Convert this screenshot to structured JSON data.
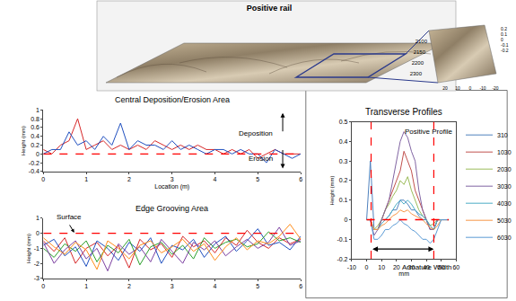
{
  "image_panel": {
    "title": "Positive rail",
    "x_ticks": [
      2100,
      2150,
      2200,
      2300
    ],
    "y_ticks": [
      20,
      10,
      0,
      -10,
      -20
    ],
    "z_ticks": [
      0.2,
      0.1,
      0,
      -0.1,
      -0.2
    ]
  },
  "chart_data": [
    {
      "type": "line",
      "title": "Central Deposition/Erosion Area",
      "x_label": "Location (m)",
      "y_label": "Height (mm)",
      "x": [
        0,
        0.2,
        0.4,
        0.6,
        0.8,
        1,
        1.2,
        1.4,
        1.6,
        1.8,
        2,
        2.2,
        2.4,
        2.6,
        2.8,
        3,
        3.2,
        3.4,
        3.6,
        3.8,
        4,
        4.2,
        4.4,
        4.6,
        4.8,
        5,
        5.2,
        5.4,
        5.6,
        5.8,
        6
      ],
      "series": [
        {
          "color": "#d62728",
          "values": [
            0.1,
            0.0,
            0.2,
            0.3,
            0.8,
            0.1,
            0.2,
            0.3,
            0.1,
            0.2,
            0.1,
            0.2,
            0.1,
            0.3,
            0.2,
            0.1,
            0.2,
            0.1,
            0.2,
            0.1,
            0.1,
            0.0,
            0.1,
            0.0,
            0.1,
            -0.1,
            0.0,
            0.1,
            0.0,
            0.0,
            0.0
          ]
        },
        {
          "color": "#1f4fbf",
          "values": [
            0.0,
            0.1,
            0.1,
            0.5,
            0.2,
            0.3,
            0.1,
            0.4,
            0.2,
            0.7,
            0.1,
            0.3,
            0.2,
            0.2,
            0.1,
            0.3,
            0.1,
            0.2,
            0.1,
            0.0,
            0.1,
            0.1,
            0.0,
            0.1,
            0.0,
            0.0,
            -0.2,
            0.1,
            0.0,
            -0.1,
            0.0
          ]
        },
        {
          "color": "#ff0000",
          "line_style": "dashed",
          "values": [
            0,
            0,
            0,
            0,
            0,
            0,
            0,
            0,
            0,
            0,
            0,
            0,
            0,
            0,
            0,
            0,
            0,
            0,
            0,
            0,
            0,
            0,
            0,
            0,
            0,
            0,
            0,
            0,
            0,
            0,
            0
          ]
        }
      ],
      "xlim": [
        0,
        6
      ],
      "xticks": [
        0,
        1,
        2,
        3,
        4,
        5,
        6
      ],
      "ylim": [
        -0.4,
        1
      ],
      "yticks": [
        -0.4,
        -0.2,
        0,
        0.2,
        0.4,
        0.6,
        0.8,
        1
      ],
      "grid": false,
      "annotations": [
        {
          "text": "Deposition"
        },
        {
          "text": "Erosion"
        }
      ]
    },
    {
      "type": "line",
      "title": "Edge Grooving Area",
      "y_label": "Height (mm)",
      "x": [
        0,
        0.25,
        0.5,
        0.75,
        1,
        1.25,
        1.5,
        1.75,
        2,
        2.25,
        2.5,
        2.75,
        3,
        3.25,
        3.5,
        3.75,
        4,
        4.25,
        4.5,
        4.75,
        5,
        5.25,
        5.5,
        5.75,
        6
      ],
      "series": [
        {
          "color": "#d62728",
          "values": [
            -0.5,
            -1.2,
            -0.3,
            -2.0,
            -1.0,
            -0.6,
            -1.5,
            -0.8,
            -2.3,
            -0.4,
            -1.1,
            -0.7,
            -1.6,
            -0.2,
            -0.9,
            -0.5,
            -1.3,
            -0.3,
            -0.8,
            0.2,
            -0.6,
            -1.0,
            -0.3,
            -0.7,
            -0.4
          ]
        },
        {
          "color": "#1f4fbf",
          "values": [
            -0.8,
            -0.4,
            -1.5,
            -0.9,
            -2.2,
            -0.5,
            -1.0,
            -1.8,
            -0.6,
            -1.2,
            -0.3,
            -2.0,
            -0.8,
            -1.1,
            -0.4,
            -1.6,
            -0.7,
            -0.2,
            -1.2,
            -0.5,
            0.3,
            -0.8,
            -0.6,
            -1.1,
            -0.2
          ]
        },
        {
          "color": "#2ca02c",
          "values": [
            -1.0,
            -1.6,
            -0.7,
            -1.2,
            -0.5,
            -1.9,
            -0.8,
            -1.3,
            -0.4,
            -2.1,
            -0.9,
            -0.6,
            -1.4,
            -0.8,
            -1.7,
            -0.3,
            -1.0,
            -0.6,
            -0.4,
            -0.9,
            -0.7,
            0.1,
            -0.5,
            -0.3,
            -0.6
          ]
        },
        {
          "color": "#7b3fa0",
          "values": [
            -0.6,
            -2.0,
            -1.1,
            -0.5,
            -1.7,
            -1.0,
            -2.5,
            -0.7,
            -1.4,
            -0.9,
            -1.9,
            -0.4,
            -1.2,
            -2.0,
            -0.6,
            -1.1,
            -0.5,
            -1.5,
            -0.9,
            -0.4,
            -1.0,
            -0.6,
            0.4,
            -0.8,
            -0.5
          ]
        },
        {
          "color": "#ff8c1a",
          "values": [
            -0.3,
            -0.9,
            -1.4,
            -0.6,
            -1.1,
            -2.4,
            -0.5,
            -1.0,
            -1.7,
            -0.8,
            -0.5,
            -1.3,
            -0.9,
            -0.4,
            -1.2,
            -0.7,
            -1.8,
            -0.9,
            -0.3,
            -1.1,
            -0.5,
            -0.7,
            -0.2,
            0.6,
            -0.4
          ]
        },
        {
          "color": "#ff0000",
          "line_style": "dashed",
          "values": [
            0,
            0,
            0,
            0,
            0,
            0,
            0,
            0,
            0,
            0,
            0,
            0,
            0,
            0,
            0,
            0,
            0,
            0,
            0,
            0,
            0,
            0,
            0,
            0,
            0
          ]
        }
      ],
      "xlim": [
        0,
        6
      ],
      "xticks": [
        0,
        1,
        2,
        3,
        4,
        5,
        6
      ],
      "ylim": [
        -3,
        1
      ],
      "yticks": [
        -3,
        -2,
        -1,
        0,
        1
      ],
      "grid": false,
      "annotations": [
        {
          "text": "Surface"
        }
      ]
    },
    {
      "type": "line",
      "title": "Transverse Profiles",
      "x_label": "mm",
      "y_label": "Height (mm)",
      "x": [
        0,
        2.5,
        5,
        7.5,
        10,
        12.5,
        15,
        17.5,
        20,
        22.5,
        25,
        27.5,
        30,
        32.5,
        35,
        37.5,
        40,
        42.5,
        45,
        47.5,
        50,
        52.5,
        55
      ],
      "series": [
        {
          "name": "310",
          "color": "#4f81bd",
          "values": [
            0,
            0.3,
            -0.05,
            -0.05,
            0,
            0,
            0.02,
            0.05,
            0.05,
            0.1,
            0.1,
            0.08,
            0.05,
            0.05,
            0.02,
            0,
            0,
            -0.05,
            -0.05,
            0,
            0,
            0,
            0
          ]
        },
        {
          "name": "1030",
          "color": "#c0504d",
          "values": [
            0,
            0,
            -0.05,
            -0.05,
            0,
            0.05,
            0.1,
            0.15,
            0.2,
            0.25,
            0.35,
            0.3,
            0.25,
            0.15,
            0.1,
            0.05,
            0,
            -0.05,
            -0.05,
            0,
            0,
            0,
            0
          ]
        },
        {
          "name": "2030",
          "color": "#9bbb59",
          "values": [
            0,
            0,
            -0.05,
            -0.03,
            0,
            0.05,
            0.08,
            0.12,
            0.15,
            0.2,
            0.18,
            0.22,
            0.15,
            0.1,
            0.05,
            0.02,
            0,
            -0.03,
            -0.02,
            0,
            0,
            0,
            0
          ]
        },
        {
          "name": "3030",
          "color": "#8064a2",
          "values": [
            0,
            0,
            -0.08,
            -0.05,
            0,
            0.05,
            0.1,
            0.2,
            0.3,
            0.4,
            0.45,
            0.42,
            0.35,
            0.3,
            0.15,
            0.05,
            0,
            -0.05,
            -0.05,
            0,
            0,
            0,
            0
          ]
        },
        {
          "name": "4030",
          "color": "#4bacc6",
          "values": [
            0,
            0,
            -0.05,
            -0.05,
            -0.02,
            0,
            0.02,
            0.05,
            0.08,
            0.1,
            0.08,
            0.1,
            0.08,
            0.05,
            0.03,
            0.02,
            0,
            -0.03,
            -0.05,
            0,
            0,
            0,
            0
          ]
        },
        {
          "name": "5030",
          "color": "#f79646",
          "values": [
            0,
            0,
            -0.05,
            -0.05,
            -0.03,
            -0.02,
            0,
            0.02,
            0.03,
            0.05,
            0.04,
            0.05,
            0.03,
            0.02,
            0.01,
            0,
            -0.02,
            -0.04,
            -0.05,
            -0.03,
            0,
            0,
            0
          ]
        },
        {
          "name": "6030",
          "color": "#5b9bd5",
          "values": [
            0,
            0,
            -0.1,
            -0.1,
            -0.08,
            -0.05,
            -0.05,
            -0.03,
            -0.02,
            0,
            -0.02,
            -0.03,
            -0.05,
            -0.06,
            -0.08,
            -0.1,
            -0.1,
            -0.12,
            -0.1,
            -0.05,
            0,
            0,
            0
          ]
        },
        {
          "color": "#ff0000",
          "line_style": "dashed",
          "values": [
            0,
            0,
            0,
            0,
            0,
            0,
            0,
            0,
            0,
            0,
            0,
            0,
            0,
            0,
            0,
            0,
            0,
            0,
            0,
            0,
            0,
            0,
            0
          ]
        }
      ],
      "xlim": [
        -10,
        60
      ],
      "xticks": [
        -10,
        0,
        10,
        20,
        30,
        40,
        50,
        60
      ],
      "ylim": [
        -0.2,
        0.5
      ],
      "yticks": [
        -0.2,
        -0.1,
        0,
        0.1,
        0.2,
        0.3,
        0.4,
        0.5
      ],
      "grid": false,
      "legend": "right",
      "vlines": [
        3,
        45
      ],
      "annotations": [
        {
          "text": "Positive Profile"
        },
        {
          "text": "Armature Width"
        }
      ]
    }
  ]
}
